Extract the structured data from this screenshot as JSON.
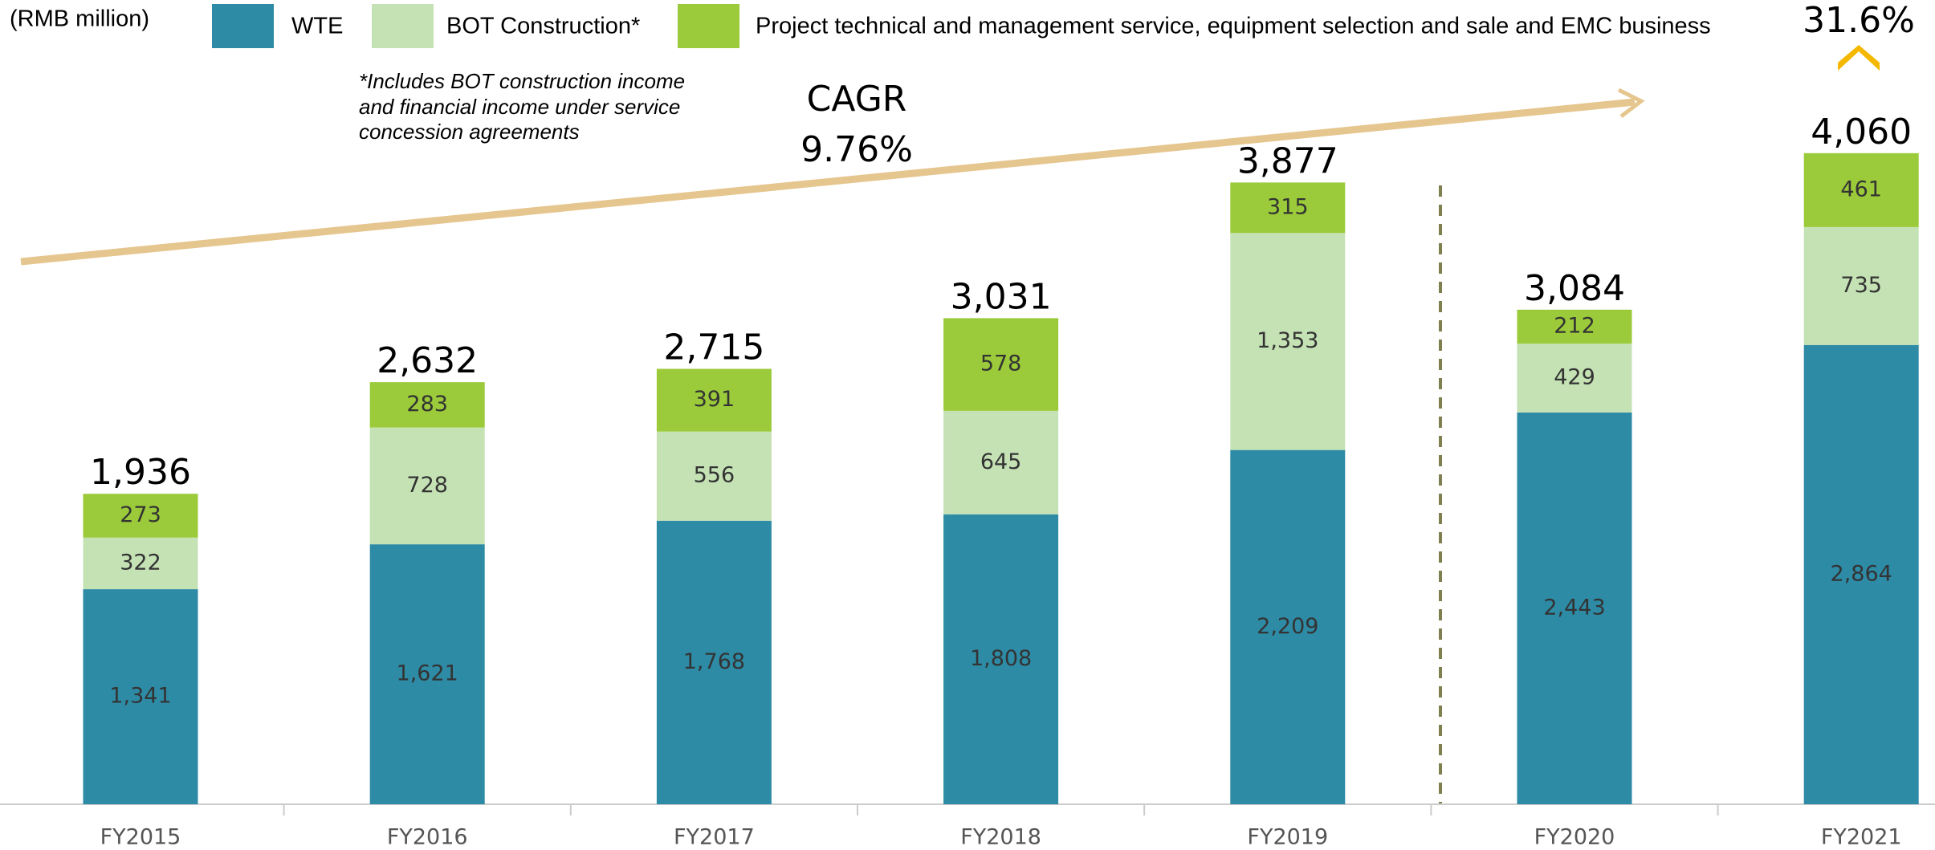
{
  "chart_data": {
    "type": "stacked_bar",
    "unit_label": "(RMB million)",
    "footnote": [
      "*Includes BOT construction income",
      "and financial income under service",
      "concession agreements"
    ],
    "cagr_label": "CAGR",
    "cagr_value": "9.76%",
    "growth_label": "31.6%",
    "categories": [
      "FY2015",
      "FY2016",
      "FY2017",
      "FY2018",
      "FY2019",
      "FY2020",
      "FY2021"
    ],
    "series": [
      {
        "name": "WTE",
        "color": "#2e8ba6",
        "values": [
          1341,
          1621,
          1768,
          1808,
          2209,
          2443,
          2864
        ],
        "value_labels": [
          "1,341",
          "1,621",
          "1,768",
          "1,808",
          "2,209",
          "2,443",
          "2,864"
        ]
      },
      {
        "name": "BOT Construction*",
        "color": "#c5e2b5",
        "values": [
          322,
          728,
          556,
          645,
          1353,
          429,
          735
        ],
        "value_labels": [
          "322",
          "728",
          "556",
          "645",
          "1,353",
          "429",
          "735"
        ]
      },
      {
        "name": "Project technical and management service, equipment selection and sale and EMC business",
        "color": "#9bcb3a",
        "values": [
          273,
          283,
          391,
          578,
          315,
          212,
          461
        ],
        "value_labels": [
          "273",
          "283",
          "391",
          "578",
          "315",
          "212",
          "461"
        ]
      }
    ],
    "totals": [
      1936,
      2632,
      2715,
      3031,
      3877,
      3084,
      4060
    ],
    "total_labels": [
      "1,936",
      "2,632",
      "2,715",
      "3,031",
      "3,877",
      "3,084",
      "4,060"
    ]
  }
}
